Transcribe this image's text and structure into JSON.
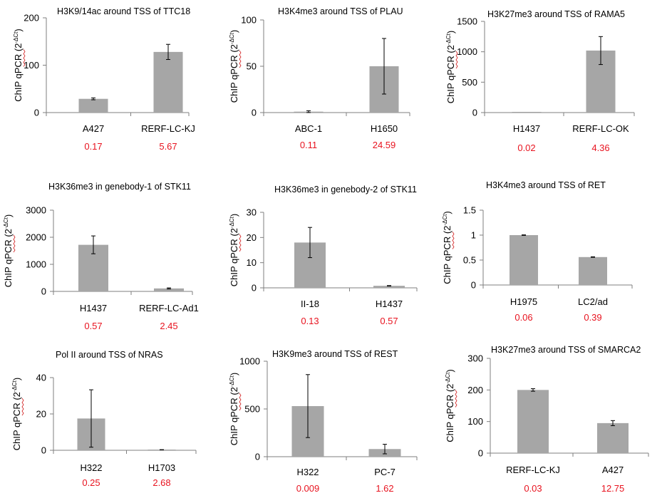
{
  "colors": {
    "bar": "#a6a6a6",
    "axis": "#7f7f7f",
    "ratio_text": "#e8131f",
    "squiggle": "#d21c1c"
  },
  "chart_data": [
    {
      "type": "bar",
      "title": "H3K9/14ac around TSS of TTC18",
      "ylabel": "ChIP qPCR (2",
      "ylabel_sup": "-ΔCt",
      "ylabel_tail": ")",
      "categories": [
        "A427",
        "RERF-LC-KJ"
      ],
      "values": [
        29,
        128
      ],
      "errors": [
        2,
        16
      ],
      "ylim": [
        0,
        200
      ],
      "yticks": [
        "0",
        "100",
        "200"
      ],
      "ratios": [
        "0.17",
        "5.67"
      ]
    },
    {
      "type": "bar",
      "title": "H3K4me3 around TSS of PLAU",
      "ylabel": "ChIP qPCR (2",
      "ylabel_sup": "-ΔCt",
      "ylabel_tail": ")",
      "categories": [
        "ABC-1",
        "H1650"
      ],
      "values": [
        1,
        50
      ],
      "errors": [
        1,
        30
      ],
      "ylim": [
        0,
        100
      ],
      "yticks": [
        "0",
        "50",
        "100"
      ],
      "ratios": [
        "0.11",
        "24.59"
      ]
    },
    {
      "type": "bar",
      "title": "H3K27me3 around TSS of RAMA5",
      "ylabel": "ChIP qPCR (2",
      "ylabel_sup": "-ΔCt",
      "ylabel_tail": ")",
      "categories": [
        "H1437",
        "RERF-LC-OK"
      ],
      "values": [
        5,
        1020
      ],
      "errors": [
        0,
        230
      ],
      "ylim": [
        0,
        1500
      ],
      "yticks": [
        "0",
        "500",
        "1000",
        "1500"
      ],
      "ratios": [
        "0.02",
        "4.36"
      ]
    },
    {
      "type": "bar",
      "title": "H3K36me3 in genebody-1 of STK11",
      "ylabel": "ChIP qPCR (2",
      "ylabel_sup": "-ΔCt",
      "ylabel_tail": ")",
      "categories": [
        "H1437",
        "RERF-LC-Ad1"
      ],
      "values": [
        1720,
        110
      ],
      "errors": [
        330,
        20
      ],
      "ylim": [
        0,
        3000
      ],
      "yticks": [
        "0",
        "1000",
        "2000",
        "3000"
      ],
      "ratios": [
        "0.57",
        "2.45"
      ]
    },
    {
      "type": "bar",
      "title": "H3K36me3 in genebody-2 of STK11",
      "ylabel": "ChIP qPCR (2",
      "ylabel_sup": "-ΔCt",
      "ylabel_tail": ")",
      "categories": [
        "II-18",
        "H1437"
      ],
      "values": [
        18,
        0.8
      ],
      "errors": [
        6,
        0.1
      ],
      "ylim": [
        0,
        30
      ],
      "yticks": [
        "0",
        "10",
        "20",
        "30"
      ],
      "ratios": [
        "0.13",
        "0.57"
      ]
    },
    {
      "type": "bar",
      "title": "H3K4me3 around TSS of RET",
      "ylabel": "ChIP qPCR (2",
      "ylabel_sup": "-ΔCt",
      "ylabel_tail": ")",
      "categories": [
        "H1975",
        "LC2/ad"
      ],
      "values": [
        1.0,
        0.56
      ],
      "errors": [
        0.005,
        0.005
      ],
      "ylim": [
        0,
        1.5
      ],
      "yticks": [
        "0",
        "0.5",
        "1",
        "1.5"
      ],
      "ratios": [
        "0.06",
        "0.39"
      ]
    },
    {
      "type": "bar",
      "title": "Pol II around TSS of NRAS",
      "ylabel": "ChIP qPCR (2",
      "ylabel_sup": "-ΔCt",
      "ylabel_tail": ")",
      "categories": [
        "H322",
        "H1703"
      ],
      "values": [
        17.5,
        0.3
      ],
      "errors": [
        15.8,
        0.05
      ],
      "ylim": [
        0,
        40
      ],
      "yticks": [
        "0",
        "20",
        "40"
      ],
      "ratios": [
        "0.25",
        "2.68"
      ]
    },
    {
      "type": "bar",
      "title": "H3K9me3 around TSS of REST",
      "ylabel": "ChIP qPCR (2",
      "ylabel_sup": "-ΔCt",
      "ylabel_tail": ")",
      "categories": [
        "H322",
        "PC-7"
      ],
      "values": [
        530,
        80
      ],
      "errors": [
        330,
        50
      ],
      "ylim": [
        0,
        1000
      ],
      "yticks": [
        "0",
        "500",
        "1000"
      ],
      "ratios": [
        "0.009",
        "1.62"
      ]
    },
    {
      "type": "bar",
      "title": "H3K27me3 around TSS of SMARCA2",
      "ylabel": "ChIP qPCR (2",
      "ylabel_sup": "-ΔCt",
      "ylabel_tail": ")",
      "categories": [
        "RERF-LC-KJ",
        "A427"
      ],
      "values": [
        200,
        95
      ],
      "errors": [
        4,
        8
      ],
      "ylim": [
        0,
        300
      ],
      "yticks": [
        "0",
        "100",
        "200",
        "300"
      ],
      "ratios": [
        "0.03",
        "12.75"
      ]
    }
  ]
}
